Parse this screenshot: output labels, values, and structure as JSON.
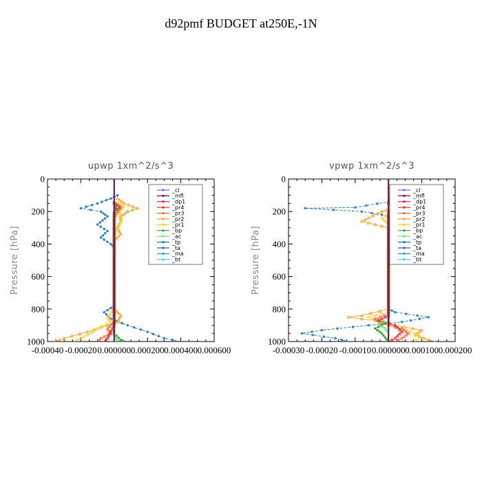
{
  "figure": {
    "title": "d92pmf  BUDGET at250E,-1N"
  },
  "colors": {
    "_cl": "#9b59d0",
    "_mfl": "#7a0f5a",
    "_dp1": "#c2185b",
    "_pr4": "#e8202a",
    "_pr3": "#f06a3a",
    "_pr2": "#f4a020",
    "_pr1": "#f4d030",
    "_bp": "#2ca02c",
    "_ac": "#6fe06f",
    "_tp": "#1f77b4",
    "_ta": "#3a55c8",
    "_ma": "#20a0b0",
    "_bt": "#20d8e0"
  },
  "legend": [
    "_cl",
    "_mfl",
    "_dp1",
    "_pr4",
    "_pr3",
    "_pr2",
    "_pr1",
    "_bp",
    "_ac",
    "_tp",
    "_ta",
    "_ma",
    "_bt"
  ],
  "chart_data": [
    {
      "type": "line",
      "title": "upwp   1xm^2/s^3",
      "ylabel": "Pressure [hPa]",
      "xlim": [
        -0.0004,
        0.0006
      ],
      "ylim": [
        1000,
        0
      ],
      "y_inverted": true,
      "xticks": [
        "-0.00040",
        "-0.00020",
        "0.000000",
        "0.000200",
        "0.000400",
        "0.000600"
      ],
      "xtick_values": [
        -0.0004,
        -0.0002,
        0,
        0.0002,
        0.0004,
        0.0006
      ],
      "yticks": [
        "0",
        "200",
        "400",
        "600",
        "800",
        "1000"
      ],
      "ytick_values": [
        0,
        200,
        400,
        600,
        800,
        1000
      ],
      "legend_position": "top-right",
      "series": [
        {
          "name": "_tp",
          "points": [
            [
              2e-05,
              100
            ],
            [
              -2e-05,
              120
            ],
            [
              -0.0001,
              150
            ],
            [
              -0.0002,
              180
            ],
            [
              -8e-05,
              200
            ],
            [
              -4e-05,
              230
            ],
            [
              -0.0001,
              280
            ],
            [
              -4e-05,
              320
            ],
            [
              -8e-05,
              360
            ],
            [
              -2e-05,
              400
            ],
            [
              0,
              420
            ],
            [
              0,
              780
            ],
            [
              -6e-05,
              820
            ],
            [
              -2e-05,
              860
            ],
            [
              8e-05,
              900
            ],
            [
              0.0002,
              940
            ],
            [
              0.0003,
              980
            ],
            [
              0.0004,
              1000
            ]
          ]
        },
        {
          "name": "_pr2",
          "points": [
            [
              2e-05,
              120
            ],
            [
              6e-05,
              150
            ],
            [
              0.00014,
              180
            ],
            [
              8e-05,
              200
            ],
            [
              4e-05,
              230
            ],
            [
              4e-05,
              260
            ],
            [
              2e-05,
              300
            ],
            [
              4e-05,
              340
            ],
            [
              0,
              380
            ],
            [
              0,
              800
            ],
            [
              4e-05,
              840
            ],
            [
              2e-05,
              880
            ],
            [
              -4e-05,
              900
            ],
            [
              -0.00016,
              940
            ],
            [
              -0.0003,
              980
            ],
            [
              -0.00036,
              1000
            ]
          ]
        },
        {
          "name": "_pr1",
          "points": [
            [
              0,
              140
            ],
            [
              6e-05,
              170
            ],
            [
              3e-05,
              200
            ],
            [
              4e-05,
              260
            ],
            [
              2e-05,
              300
            ],
            [
              0,
              350
            ],
            [
              0,
              800
            ],
            [
              -4e-05,
              850
            ],
            [
              -2e-05,
              880
            ],
            [
              -0.0001,
              920
            ],
            [
              -0.00014,
              950
            ],
            [
              -0.0002,
              980
            ],
            [
              -0.00024,
              1000
            ]
          ]
        },
        {
          "name": "_pr3",
          "points": [
            [
              0,
              140
            ],
            [
              4e-05,
              170
            ],
            [
              2e-05,
              200
            ],
            [
              0,
              240
            ],
            [
              0,
              880
            ],
            [
              -4e-05,
              920
            ],
            [
              -2e-05,
              950
            ],
            [
              -8e-05,
              980
            ],
            [
              -0.0001,
              1000
            ]
          ]
        },
        {
          "name": "_pr4",
          "points": [
            [
              0,
              150
            ],
            [
              3e-05,
              175
            ],
            [
              0,
              200
            ],
            [
              0,
              900
            ],
            [
              -2e-05,
              940
            ],
            [
              -4e-05,
              980
            ],
            [
              -6e-05,
              1000
            ]
          ]
        },
        {
          "name": "_bp",
          "points": [
            [
              0,
              150
            ],
            [
              1e-05,
              180
            ],
            [
              0,
              210
            ],
            [
              0,
              950
            ],
            [
              4e-05,
              990
            ],
            [
              8e-05,
              1000
            ]
          ]
        },
        {
          "name": "_ac",
          "points": [
            [
              0,
              960
            ],
            [
              2e-05,
              990
            ],
            [
              6e-05,
              1000
            ]
          ]
        },
        {
          "name": "_ma",
          "points": [
            [
              0,
              0
            ],
            [
              0,
              1000
            ]
          ]
        },
        {
          "name": "_dp1",
          "points": [
            [
              0,
              0
            ],
            [
              0,
              1000
            ]
          ]
        },
        {
          "name": "_mfl",
          "points": [
            [
              0,
              0
            ],
            [
              0,
              1000
            ]
          ]
        }
      ]
    },
    {
      "type": "line",
      "title": "vpwp   1xm^2/s^3",
      "ylabel": "Pressure [hPa]",
      "xlim": [
        -0.0003,
        0.0002
      ],
      "ylim": [
        1000,
        0
      ],
      "y_inverted": true,
      "xticks": [
        "-0.00030",
        "-0.00020",
        "-0.00010",
        "0.000000",
        "0.000100",
        "0.000200"
      ],
      "xtick_values": [
        -0.0003,
        -0.0002,
        -0.0001,
        0,
        0.0001,
        0.0002
      ],
      "yticks": [
        "0",
        "200",
        "400",
        "600",
        "800",
        "1000"
      ],
      "ytick_values": [
        0,
        200,
        400,
        600,
        800,
        1000
      ],
      "legend_position": "top-right",
      "series": [
        {
          "name": "_tp",
          "points": [
            [
              1e-05,
              110
            ],
            [
              0,
              140
            ],
            [
              -0.0001,
              175
            ],
            [
              -0.00025,
              180
            ],
            [
              -8e-05,
              200
            ],
            [
              -2e-05,
              220
            ],
            [
              2e-05,
              240
            ],
            [
              0,
              260
            ],
            [
              2e-05,
              300
            ],
            [
              0,
              340
            ],
            [
              0,
              800
            ],
            [
              2e-05,
              820
            ],
            [
              0.00012,
              850
            ],
            [
              4e-05,
              880
            ],
            [
              -6e-05,
              900
            ],
            [
              -0.0002,
              930
            ],
            [
              -0.00026,
              950
            ],
            [
              -0.00016,
              980
            ],
            [
              -0.00012,
              1000
            ]
          ]
        },
        {
          "name": "_pr2",
          "points": [
            [
              0,
              140
            ],
            [
              2e-05,
              170
            ],
            [
              -2e-05,
              200
            ],
            [
              -6e-05,
              240
            ],
            [
              -8e-05,
              260
            ],
            [
              -4e-05,
              280
            ],
            [
              0,
              300
            ],
            [
              0,
              800
            ],
            [
              -8e-05,
              840
            ],
            [
              -0.00012,
              850
            ],
            [
              -4e-05,
              870
            ],
            [
              2e-05,
              900
            ],
            [
              0.0001,
              930
            ],
            [
              8e-05,
              960
            ],
            [
              0.00012,
              990
            ],
            [
              0.00014,
              1000
            ]
          ]
        },
        {
          "name": "_pr1",
          "points": [
            [
              0,
              150
            ],
            [
              4e-05,
              175
            ],
            [
              2e-05,
              200
            ],
            [
              -2e-05,
              240
            ],
            [
              0,
              280
            ],
            [
              0,
              820
            ],
            [
              -6e-05,
              850
            ],
            [
              -2e-05,
              880
            ],
            [
              4e-05,
              920
            ],
            [
              8e-05,
              950
            ],
            [
              0.0001,
              980
            ],
            [
              6e-05,
              1000
            ]
          ]
        },
        {
          "name": "_pr3",
          "points": [
            [
              0,
              140
            ],
            [
              5e-05,
              170
            ],
            [
              2e-05,
              200
            ],
            [
              0,
              230
            ],
            [
              0,
              830
            ],
            [
              -4e-05,
              860
            ],
            [
              -2e-05,
              890
            ],
            [
              4e-05,
              920
            ],
            [
              6e-05,
              950
            ],
            [
              4e-05,
              980
            ],
            [
              2e-05,
              1000
            ]
          ]
        },
        {
          "name": "_pr4",
          "points": [
            [
              0,
              150
            ],
            [
              6e-05,
              175
            ],
            [
              0,
              200
            ],
            [
              0,
              840
            ],
            [
              -3e-05,
              870
            ],
            [
              2e-05,
              900
            ],
            [
              4e-05,
              940
            ],
            [
              2e-05,
              980
            ],
            [
              0,
              1000
            ]
          ]
        },
        {
          "name": "_bp",
          "points": [
            [
              0,
              150
            ],
            [
              2e-05,
              180
            ],
            [
              0,
              210
            ],
            [
              0,
              880
            ],
            [
              -2e-05,
              900
            ],
            [
              -4e-05,
              920
            ],
            [
              -2e-05,
              950
            ],
            [
              0,
              1000
            ]
          ]
        },
        {
          "name": "_ac",
          "points": [
            [
              0,
              870
            ],
            [
              -3e-05,
              895
            ],
            [
              -1e-05,
              920
            ],
            [
              0,
              950
            ]
          ]
        },
        {
          "name": "_ma",
          "points": [
            [
              0,
              0
            ],
            [
              0,
              1000
            ]
          ]
        },
        {
          "name": "_dp1",
          "points": [
            [
              0,
              0
            ],
            [
              0,
              1000
            ]
          ]
        },
        {
          "name": "_mfl",
          "points": [
            [
              0,
              0
            ],
            [
              0,
              1000
            ]
          ]
        }
      ]
    }
  ]
}
